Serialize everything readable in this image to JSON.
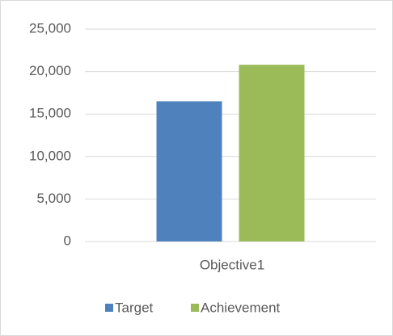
{
  "chart_data": {
    "type": "bar",
    "categories": [
      "Objective1"
    ],
    "series": [
      {
        "name": "Target",
        "color": "#4f81bd",
        "values": [
          16500
        ]
      },
      {
        "name": "Achievement",
        "color": "#9bbb59",
        "values": [
          20800
        ]
      }
    ],
    "ylim": [
      0,
      25000
    ],
    "yticks": [
      0,
      {
        "value": 5000,
        "label": "5,000"
      },
      {
        "value": 10000,
        "label": "10,000"
      },
      {
        "value": 15000,
        "label": "15,000"
      },
      {
        "value": 20000,
        "label": "20,000"
      },
      {
        "value": 25000,
        "label": "25,000"
      }
    ],
    "grid": true,
    "legend": "bottom"
  }
}
